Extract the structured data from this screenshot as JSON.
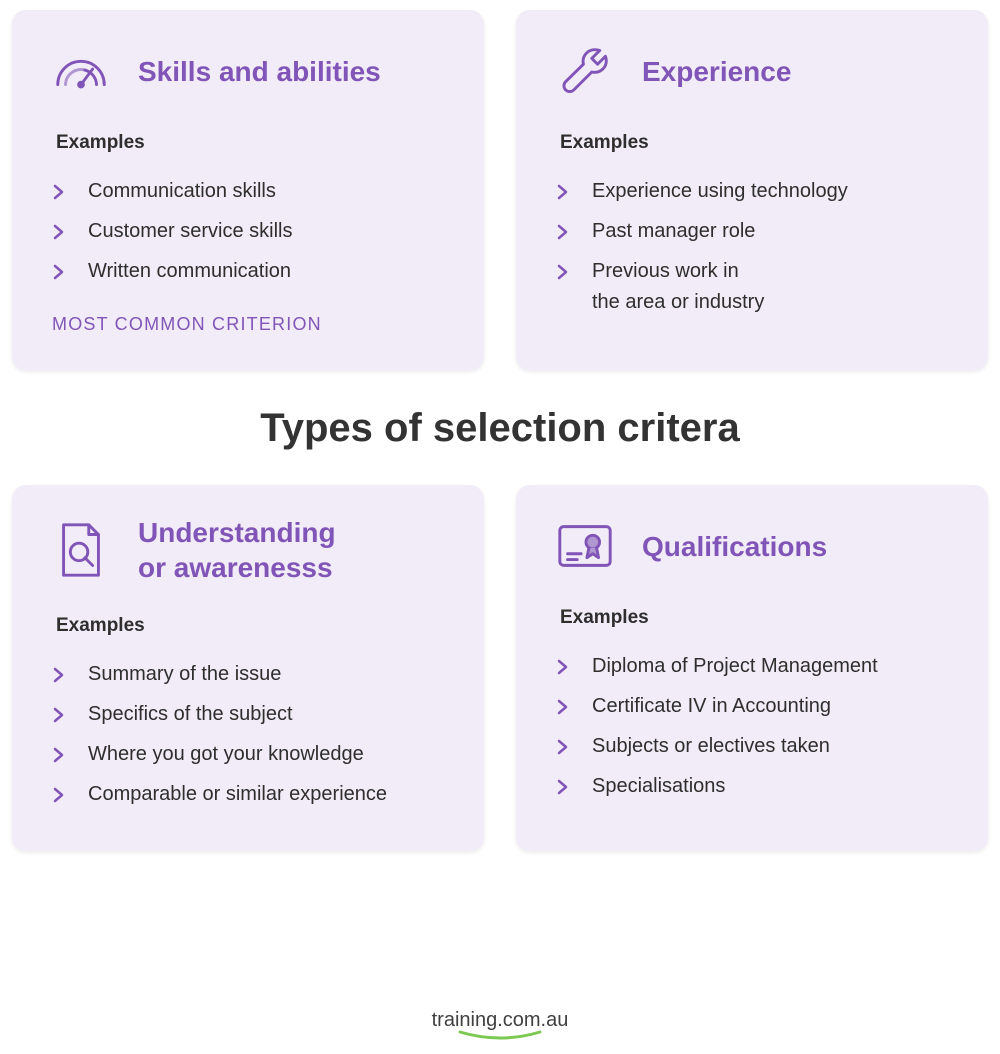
{
  "title": "Types of selection critera",
  "colors": {
    "card_bg": "#f1ecf7",
    "accent": "#8155b7",
    "accent_light": "#b197d1",
    "text": "#2e2e2e",
    "title": "#333333",
    "logo_text": "#404040",
    "logo_swoosh": "#7bc950",
    "page_bg": "#ffffff"
  },
  "examples_label": "Examples",
  "cards": [
    {
      "key": "skills",
      "title": "Skills and abilities",
      "icon": "gauge",
      "items": [
        "Communication skills",
        "Customer service skills",
        "Written communication"
      ],
      "badge": "MOST COMMON CRITERION"
    },
    {
      "key": "experience",
      "title": "Experience",
      "icon": "wrench",
      "items": [
        "Experience using technology",
        "Past manager role",
        "Previous work in\nthe area or industry"
      ],
      "badge": null
    },
    {
      "key": "understanding",
      "title": "Understanding\nor awarenesss",
      "icon": "search-doc",
      "items": [
        "Summary of the issue",
        "Specifics of the subject",
        "Where you got your knowledge",
        "Comparable or similar experience"
      ],
      "badge": null
    },
    {
      "key": "qualifications",
      "title": "Qualifications",
      "icon": "certificate",
      "items": [
        "Diploma of Project Management",
        "Certificate IV in Accounting",
        "Subjects or electives taken",
        "Specialisations"
      ],
      "badge": null
    }
  ],
  "footer": {
    "text": "training.com.au"
  }
}
